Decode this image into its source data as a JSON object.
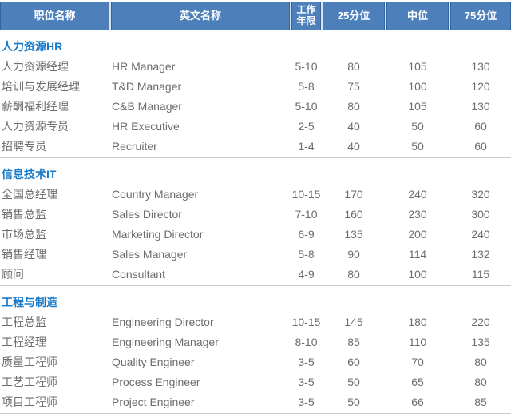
{
  "colors": {
    "header_bg": "#4d7fba",
    "header_border": "#38649c",
    "header_gap": "#d9e4f1",
    "header_text": "#ffffff",
    "section_title": "#1779c9",
    "body_text": "#6b6c6f",
    "separator": "#c9c9c9"
  },
  "header": {
    "columns": [
      "职位名称",
      "英文名称",
      "工作年限",
      "25分位",
      "中位",
      "75分位"
    ]
  },
  "sections": [
    {
      "title": "人力资源HR",
      "rows": [
        [
          "人力资源经理",
          "HR Manager",
          "5-10",
          "80",
          "105",
          "130"
        ],
        [
          "培训与发展经理",
          "T&D Manager",
          "5-8",
          "75",
          "100",
          "120"
        ],
        [
          "薪酬福利经理",
          "C&B Manager",
          "5-10",
          "80",
          "105",
          "130"
        ],
        [
          "人力资源专员",
          "HR Executive",
          "2-5",
          "40",
          "50",
          "60"
        ],
        [
          "招聘专员",
          "Recruiter",
          "1-4",
          "40",
          "50",
          "60"
        ]
      ]
    },
    {
      "title": "信息技术IT",
      "rows": [
        [
          "全国总经理",
          "Country Manager",
          "10-15",
          "170",
          "240",
          "320"
        ],
        [
          "销售总监",
          "Sales Director",
          "7-10",
          "160",
          "230",
          "300"
        ],
        [
          "市场总监",
          "Marketing Director",
          "6-9",
          "135",
          "200",
          "240"
        ],
        [
          "销售经理",
          "Sales Manager",
          "5-8",
          "90",
          "114",
          "132"
        ],
        [
          "顾问",
          "Consultant",
          "4-9",
          "80",
          "100",
          "115"
        ]
      ]
    },
    {
      "title": "工程与制造",
      "rows": [
        [
          "工程总监",
          "Engineering Director",
          "10-15",
          "145",
          "180",
          "220"
        ],
        [
          "工程经理",
          "Engineering Manager",
          "8-10",
          "85",
          "110",
          "135"
        ],
        [
          "质量工程师",
          "Quality Engineer",
          "3-5",
          "60",
          "70",
          "80"
        ],
        [
          "工艺工程师",
          "Process Engineer",
          "3-5",
          "50",
          "65",
          "80"
        ],
        [
          "项目工程师",
          "Project Engineer",
          "3-5",
          "50",
          "66",
          "85"
        ]
      ]
    }
  ],
  "chart_data": {
    "type": "table",
    "columns": [
      "职位名称",
      "英文名称",
      "工作年限",
      "25分位",
      "中位",
      "75分位"
    ],
    "groups": [
      {
        "group": "人力资源HR",
        "rows": [
          [
            "人力资源经理",
            "HR Manager",
            "5-10",
            80,
            105,
            130
          ],
          [
            "培训与发展经理",
            "T&D Manager",
            "5-8",
            75,
            100,
            120
          ],
          [
            "薪酬福利经理",
            "C&B Manager",
            "5-10",
            80,
            105,
            130
          ],
          [
            "人力资源专员",
            "HR Executive",
            "2-5",
            40,
            50,
            60
          ],
          [
            "招聘专员",
            "Recruiter",
            "1-4",
            40,
            50,
            60
          ]
        ]
      },
      {
        "group": "信息技术IT",
        "rows": [
          [
            "全国总经理",
            "Country Manager",
            "10-15",
            170,
            240,
            320
          ],
          [
            "销售总监",
            "Sales Director",
            "7-10",
            160,
            230,
            300
          ],
          [
            "市场总监",
            "Marketing Director",
            "6-9",
            135,
            200,
            240
          ],
          [
            "销售经理",
            "Sales Manager",
            "5-8",
            90,
            114,
            132
          ],
          [
            "顾问",
            "Consultant",
            "4-9",
            80,
            100,
            115
          ]
        ]
      },
      {
        "group": "工程与制造",
        "rows": [
          [
            "工程总监",
            "Engineering Director",
            "10-15",
            145,
            180,
            220
          ],
          [
            "工程经理",
            "Engineering Manager",
            "8-10",
            85,
            110,
            135
          ],
          [
            "质量工程师",
            "Quality Engineer",
            "3-5",
            60,
            70,
            80
          ],
          [
            "工艺工程师",
            "Process Engineer",
            "3-5",
            50,
            65,
            80
          ],
          [
            "项目工程师",
            "Project Engineer",
            "3-5",
            50,
            66,
            85
          ]
        ]
      }
    ]
  }
}
